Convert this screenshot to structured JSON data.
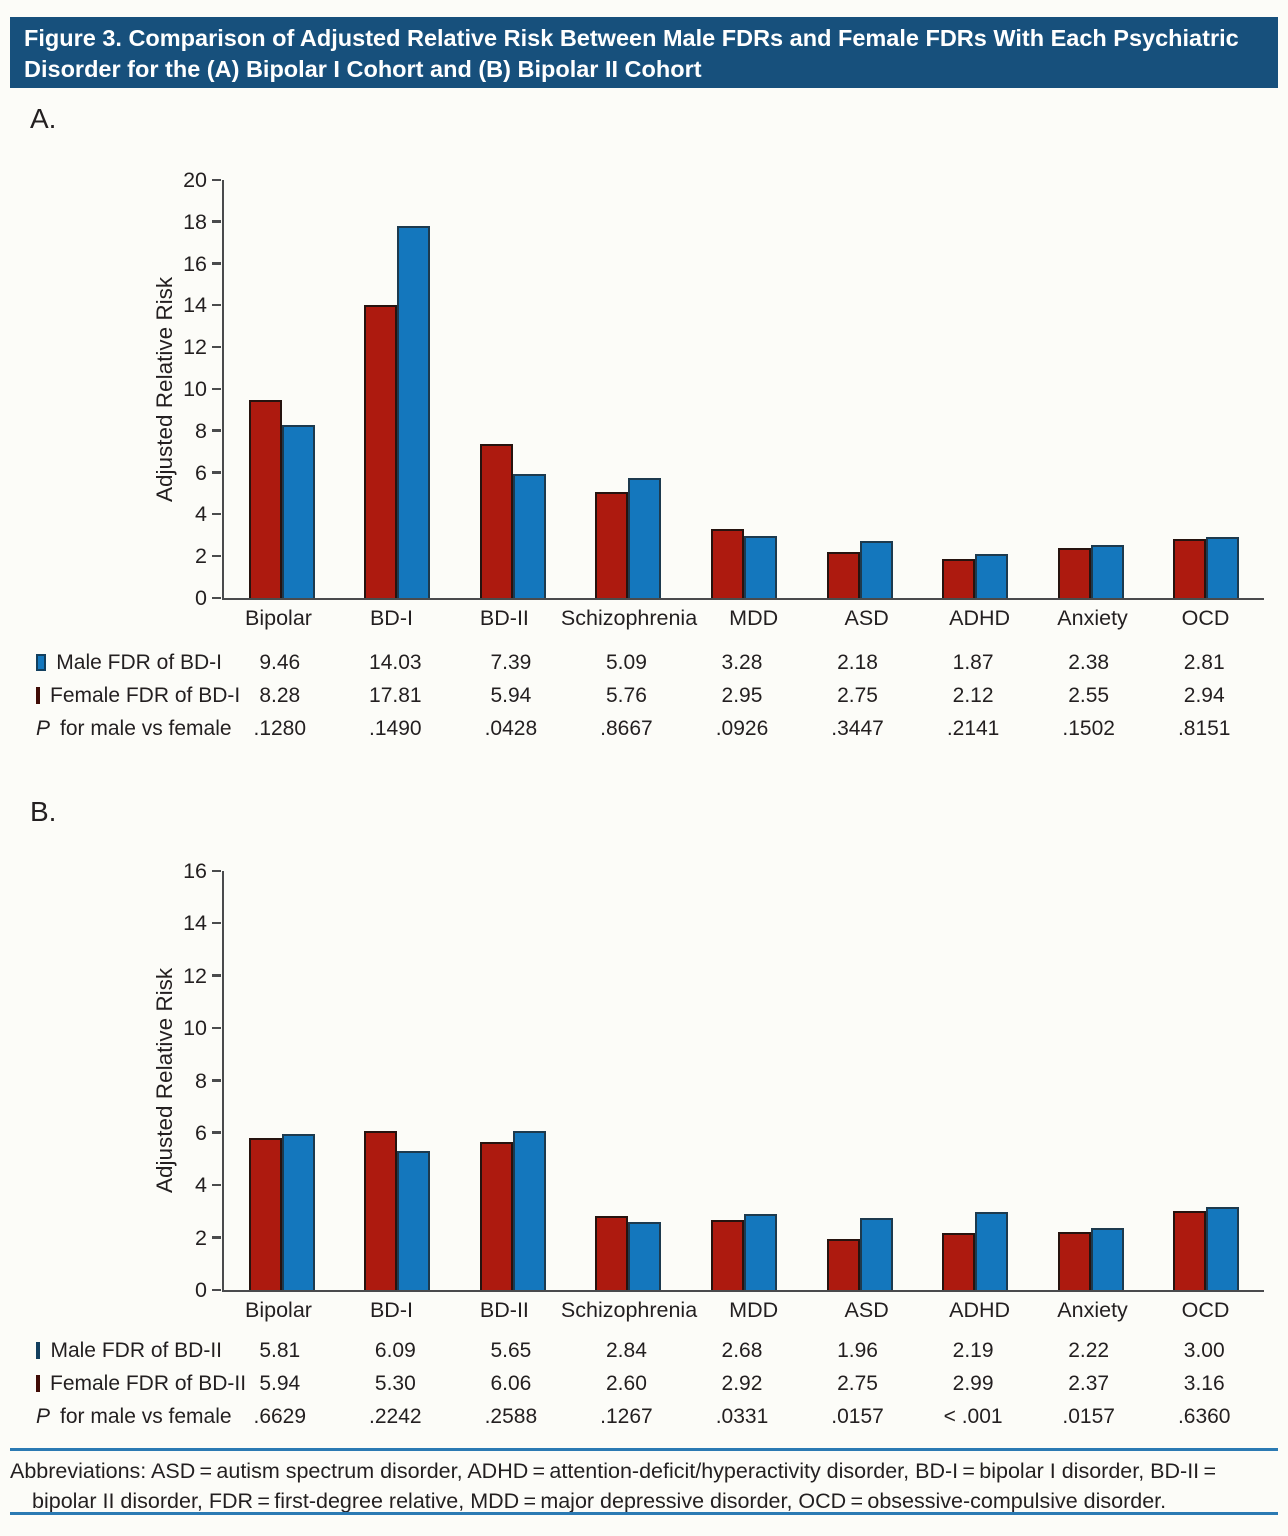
{
  "figure": {
    "title_line1": "Figure 3. Comparison of Adjusted Relative Risk Between Male FDRs and Female FDRs With Each Psychiatric",
    "title_line2": "Disorder for the (A) Bipolar I Cohort and (B) Bipolar II Cohort",
    "abbreviations": "Abbreviations: ASD = autism spectrum disorder, ADHD = attention-deficit/hyperactivity disorder, BD-I = bipolar I disorder, BD-II = bipolar II disorder, FDR = first-degree relative, MDD = major depressive disorder, OCD = obsessive-compulsive disorder."
  },
  "colors": {
    "title_bar_background": "#17507c",
    "title_bar_text": "#ffffff",
    "red_bar": "#ad1a0f",
    "blue_bar": "#1477bd",
    "axis": "#4a4b4d",
    "horizontal_rule_blue": "#2b7ab3",
    "body_text": "#231f20"
  },
  "chart_data": [
    {
      "id": "A",
      "panel_label": "A.",
      "type": "bar",
      "ylabel": "Adjusted Relative Risk",
      "ylim": [
        0,
        20
      ],
      "ytick_step": 2,
      "grid": false,
      "legend_position": "table-below-left",
      "categories": [
        "Bipolar",
        "BD-I",
        "BD-II",
        "Schizophrenia",
        "MDD",
        "ASD",
        "ADHD",
        "Anxiety",
        "OCD"
      ],
      "series": [
        {
          "name": "Male FDR of BD-I",
          "legend_marker_color": "#1477bd",
          "legend_marker_border": "#123f5e",
          "bar_color": "#ad1a0f",
          "bar_border_color": "#26130f",
          "bar_position": "left",
          "values": [
            "9.46",
            "14.03",
            "7.39",
            "5.09",
            "3.28",
            "2.18",
            "1.87",
            "2.38",
            "2.81"
          ]
        },
        {
          "name": "Female FDR of BD-I",
          "legend_marker_color": "#a5170c",
          "legend_marker_border": "#400c06",
          "bar_color": "#1477bd",
          "bar_border_color": "#1d3a4e",
          "bar_position": "right",
          "values": [
            "8.28",
            "17.81",
            "5.94",
            "5.76",
            "2.95",
            "2.75",
            "2.12",
            "2.55",
            "2.94"
          ]
        }
      ],
      "p_row": {
        "label_italic": "P",
        "label_rest": " for male vs female",
        "values": [
          ".1280",
          ".1490",
          ".0428",
          ".8667",
          ".0926",
          ".3447",
          ".2141",
          ".1502",
          ".8151"
        ]
      }
    },
    {
      "id": "B",
      "panel_label": "B.",
      "type": "bar",
      "ylabel": "Adjusted Relative Risk",
      "ylim": [
        0,
        16
      ],
      "ytick_step": 2,
      "grid": false,
      "legend_position": "table-below-left",
      "categories": [
        "Bipolar",
        "BD-I",
        "BD-II",
        "Schizophrenia",
        "MDD",
        "ASD",
        "ADHD",
        "Anxiety",
        "OCD"
      ],
      "series": [
        {
          "name": "Male FDR of BD-II",
          "legend_marker_color": "#1477bd",
          "legend_marker_border": "#123f5e",
          "bar_color": "#ad1a0f",
          "bar_border_color": "#26130f",
          "bar_position": "left",
          "values": [
            "5.81",
            "6.09",
            "5.65",
            "2.84",
            "2.68",
            "1.96",
            "2.19",
            "2.22",
            "3.00"
          ]
        },
        {
          "name": "Female FDR of BD-II",
          "legend_marker_color": "#a5170c",
          "legend_marker_border": "#400c06",
          "bar_color": "#1477bd",
          "bar_border_color": "#1d3a4e",
          "bar_position": "right",
          "values": [
            "5.94",
            "5.30",
            "6.06",
            "2.60",
            "2.92",
            "2.75",
            "2.99",
            "2.37",
            "3.16"
          ]
        }
      ],
      "p_row": {
        "label_italic": "P",
        "label_rest": " for male vs female",
        "values": [
          ".6629",
          ".2242",
          ".2588",
          ".1267",
          ".0331",
          ".0157",
          "< .001",
          ".0157",
          ".6360"
        ]
      }
    }
  ]
}
